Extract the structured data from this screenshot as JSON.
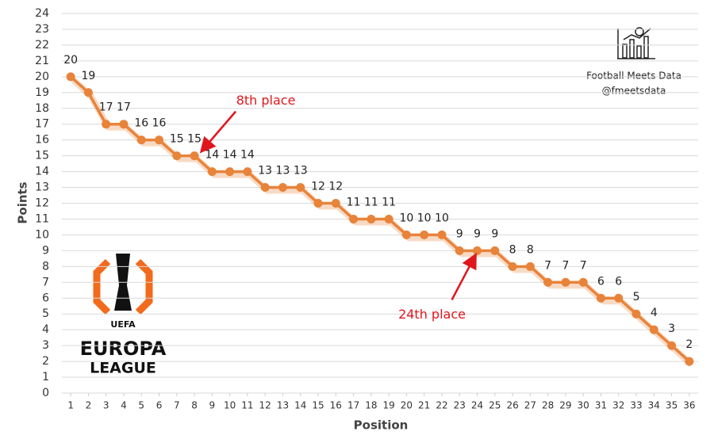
{
  "chart_data": {
    "type": "line",
    "x_label": "Position",
    "y_label": "Points",
    "x": [
      1,
      2,
      3,
      4,
      5,
      6,
      7,
      8,
      9,
      10,
      11,
      12,
      13,
      14,
      15,
      16,
      17,
      18,
      19,
      20,
      21,
      22,
      23,
      24,
      25,
      26,
      27,
      28,
      29,
      30,
      31,
      32,
      33,
      34,
      35,
      36
    ],
    "series": [
      {
        "color": "#e8833a",
        "values": [
          20,
          19,
          17,
          17,
          16,
          16,
          15,
          15,
          14,
          14,
          14,
          13,
          13,
          13,
          12,
          12,
          11,
          11,
          11,
          10,
          10,
          10,
          9,
          9,
          9,
          8,
          8,
          7,
          7,
          7,
          6,
          6,
          5,
          4,
          3,
          2
        ]
      }
    ],
    "xlim": [
      0.5,
      36.5
    ],
    "xticks": [
      1,
      2,
      3,
      4,
      5,
      6,
      7,
      8,
      9,
      10,
      11,
      12,
      13,
      14,
      15,
      16,
      17,
      18,
      19,
      20,
      21,
      22,
      23,
      24,
      25,
      26,
      27,
      28,
      29,
      30,
      31,
      32,
      33,
      34,
      35,
      36
    ],
    "ylim": [
      0,
      24
    ],
    "yticks": [
      0,
      1,
      2,
      3,
      4,
      5,
      6,
      7,
      8,
      9,
      10,
      11,
      12,
      13,
      14,
      15,
      16,
      17,
      18,
      19,
      20,
      21,
      22,
      23,
      24
    ],
    "grid": true,
    "annotations": [
      {
        "text": "8th place",
        "x": 8,
        "y": 15,
        "color": "#e0161d"
      },
      {
        "text": "24th place",
        "x": 24,
        "y": 9,
        "color": "#e0161d"
      }
    ],
    "watermark": [
      "Football Meets Data",
      "@fmeetsdata"
    ],
    "logo": [
      "UEFA",
      "EUROPA",
      "LEAGUE"
    ]
  }
}
